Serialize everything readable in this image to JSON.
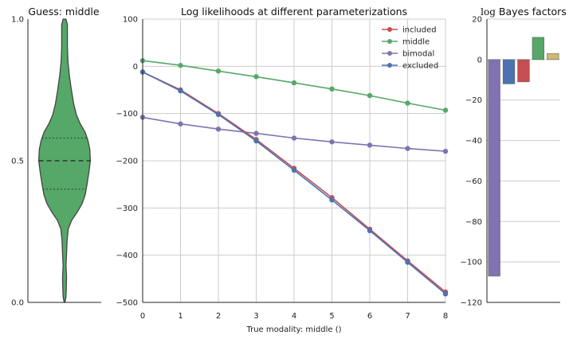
{
  "chart_data": [
    {
      "type": "violin",
      "title": "Guess: middle",
      "ylim": [
        0.0,
        1.0
      ],
      "y_tick_labels": [
        "0.0",
        "0.5",
        "1.0"
      ],
      "color": "#55a868",
      "median": 0.5,
      "quartiles": [
        0.4,
        0.58
      ],
      "density_profile": [
        {
          "y": 0.0,
          "d": 0.01
        },
        {
          "y": 0.02,
          "d": 0.05
        },
        {
          "y": 0.05,
          "d": 0.06
        },
        {
          "y": 0.09,
          "d": 0.07
        },
        {
          "y": 0.13,
          "d": 0.05
        },
        {
          "y": 0.17,
          "d": 0.07
        },
        {
          "y": 0.22,
          "d": 0.09
        },
        {
          "y": 0.26,
          "d": 0.13
        },
        {
          "y": 0.29,
          "d": 0.25
        },
        {
          "y": 0.32,
          "d": 0.45
        },
        {
          "y": 0.35,
          "d": 0.62
        },
        {
          "y": 0.38,
          "d": 0.72
        },
        {
          "y": 0.42,
          "d": 0.79
        },
        {
          "y": 0.46,
          "d": 0.85
        },
        {
          "y": 0.5,
          "d": 0.9
        },
        {
          "y": 0.54,
          "d": 0.88
        },
        {
          "y": 0.57,
          "d": 0.82
        },
        {
          "y": 0.6,
          "d": 0.72
        },
        {
          "y": 0.63,
          "d": 0.55
        },
        {
          "y": 0.66,
          "d": 0.42
        },
        {
          "y": 0.7,
          "d": 0.32
        },
        {
          "y": 0.75,
          "d": 0.24
        },
        {
          "y": 0.8,
          "d": 0.17
        },
        {
          "y": 0.85,
          "d": 0.12
        },
        {
          "y": 0.9,
          "d": 0.1
        },
        {
          "y": 0.95,
          "d": 0.1
        },
        {
          "y": 0.98,
          "d": 0.1
        },
        {
          "y": 1.0,
          "d": 0.05
        }
      ]
    },
    {
      "type": "line",
      "title": "Log likelihoods at different parameterizations",
      "xlabel": "True modality: middle ()",
      "ylabel": "",
      "xlim": [
        0,
        8
      ],
      "ylim": [
        -500,
        100
      ],
      "x": [
        0,
        1,
        2,
        3,
        4,
        5,
        6,
        7,
        8
      ],
      "x_tick_labels": [
        "0",
        "1",
        "2",
        "3",
        "4",
        "5",
        "6",
        "7",
        "8"
      ],
      "y_tick_labels": [
        "100",
        "0",
        "−100",
        "−200",
        "−300",
        "−400",
        "−500"
      ],
      "y_ticks": [
        100,
        0,
        -100,
        -200,
        -300,
        -400,
        -500
      ],
      "grid": true,
      "legend_position": "top-right",
      "series": [
        {
          "name": "included",
          "color": "#c44e52",
          "values": [
            -12,
            -50,
            -100,
            -155,
            -216,
            -278,
            -345,
            -412,
            -478
          ]
        },
        {
          "name": "middle",
          "color": "#55a868",
          "values": [
            12,
            2,
            -10,
            -22,
            -35,
            -48,
            -62,
            -78,
            -93
          ]
        },
        {
          "name": "bimodal",
          "color": "#8172b2",
          "values": [
            -108,
            -122,
            -133,
            -142,
            -152,
            -160,
            -167,
            -174,
            -180
          ]
        },
        {
          "name": "excluded",
          "color": "#4c72b0",
          "values": [
            -12,
            -52,
            -102,
            -158,
            -220,
            -283,
            -348,
            -415,
            -482
          ]
        }
      ]
    },
    {
      "type": "bar",
      "title_prefix": "log",
      "title_rest": " Bayes factors",
      "ylim": [
        -120,
        20
      ],
      "y_ticks": [
        20,
        0,
        -20,
        -40,
        -60,
        -80,
        -100,
        -120
      ],
      "y_tick_labels": [
        "20",
        "0",
        "−20",
        "−40",
        "−60",
        "−80",
        "−100",
        "−120"
      ],
      "grid": true,
      "bars": [
        {
          "value": -107,
          "color": "#8172b2"
        },
        {
          "value": -12,
          "color": "#4c72b0"
        },
        {
          "value": -11,
          "color": "#c44e52"
        },
        {
          "value": 11,
          "color": "#55a868"
        },
        {
          "value": 3,
          "color": "#ccb974"
        }
      ]
    }
  ]
}
